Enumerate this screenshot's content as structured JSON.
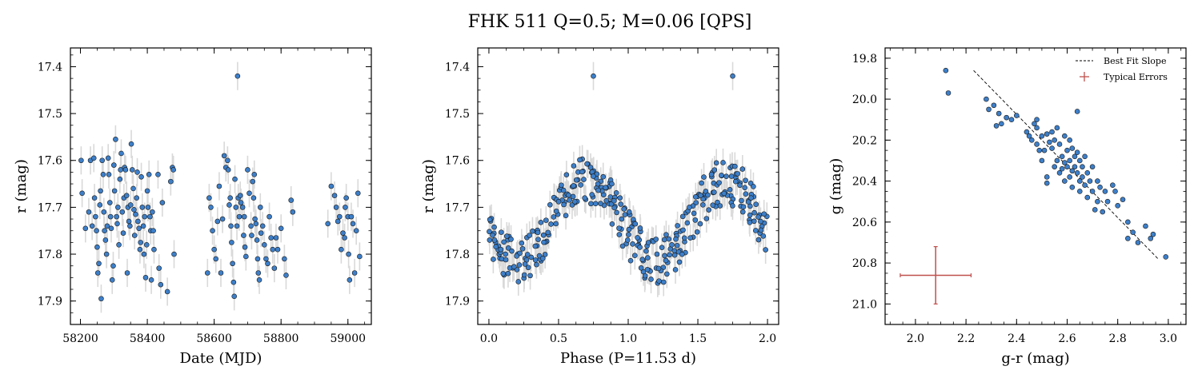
{
  "title": "FHK 511  Q=0.5; M=0.06 [QPS]",
  "colors": {
    "point": "#3d7fc9",
    "point_edge": "#1a1a1a",
    "errorbar": "#d9d9d9",
    "fit_line": "#000000",
    "typical_error": "#c0504d"
  },
  "legend": {
    "fit_label": "Best Fit Slope",
    "err_label": "Typical Errors",
    "placement": "top-right"
  },
  "chart_data": [
    {
      "type": "scatter",
      "xlabel": "Date (MJD)",
      "ylabel": "r (mag)",
      "xlim": [
        58170,
        59070
      ],
      "ylim": [
        17.95,
        17.36
      ],
      "y_inverted": true,
      "xticks": [
        58200,
        58400,
        58600,
        58800,
        59000
      ],
      "yticks": [
        17.4,
        17.5,
        17.6,
        17.7,
        17.8,
        17.9
      ],
      "error_bar_mag": 0.03,
      "points": [
        [
          58202,
          17.6
        ],
        [
          58205,
          17.67
        ],
        [
          58215,
          17.745
        ],
        [
          58225,
          17.71
        ],
        [
          58230,
          17.6
        ],
        [
          58235,
          17.74
        ],
        [
          58240,
          17.595
        ],
        [
          58242,
          17.68
        ],
        [
          58245,
          17.72
        ],
        [
          58248,
          17.75
        ],
        [
          58250,
          17.785
        ],
        [
          58252,
          17.84
        ],
        [
          58255,
          17.82
        ],
        [
          58258,
          17.695
        ],
        [
          58260,
          17.665
        ],
        [
          58262,
          17.895
        ],
        [
          58265,
          17.6
        ],
        [
          58268,
          17.63
        ],
        [
          58270,
          17.71
        ],
        [
          58272,
          17.75
        ],
        [
          58275,
          17.77
        ],
        [
          58278,
          17.8
        ],
        [
          58280,
          17.74
        ],
        [
          58283,
          17.595
        ],
        [
          58285,
          17.63
        ],
        [
          58288,
          17.69
        ],
        [
          58290,
          17.72
        ],
        [
          58292,
          17.745
        ],
        [
          58295,
          17.855
        ],
        [
          58298,
          17.825
        ],
        [
          58300,
          17.61
        ],
        [
          58302,
          17.665
        ],
        [
          58305,
          17.555
        ],
        [
          58308,
          17.72
        ],
        [
          58310,
          17.735
        ],
        [
          58312,
          17.7
        ],
        [
          58315,
          17.78
        ],
        [
          58318,
          17.64
        ],
        [
          58320,
          17.62
        ],
        [
          58322,
          17.585
        ],
        [
          58325,
          17.71
        ],
        [
          58328,
          17.755
        ],
        [
          58330,
          17.68
        ],
        [
          58332,
          17.615
        ],
        [
          58335,
          17.62
        ],
        [
          58338,
          17.675
        ],
        [
          58340,
          17.84
        ],
        [
          58342,
          17.7
        ],
        [
          58345,
          17.73
        ],
        [
          58348,
          17.74
        ],
        [
          58350,
          17.695
        ],
        [
          58352,
          17.565
        ],
        [
          58355,
          17.62
        ],
        [
          58358,
          17.66
        ],
        [
          58360,
          17.705
        ],
        [
          58362,
          17.76
        ],
        [
          58365,
          17.715
        ],
        [
          58368,
          17.68
        ],
        [
          58370,
          17.625
        ],
        [
          58372,
          17.73
        ],
        [
          58375,
          17.745
        ],
        [
          58378,
          17.79
        ],
        [
          58380,
          17.775
        ],
        [
          58382,
          17.635
        ],
        [
          58385,
          17.7
        ],
        [
          58388,
          17.74
        ],
        [
          58390,
          17.8
        ],
        [
          58392,
          17.72
        ],
        [
          58395,
          17.85
        ],
        [
          58398,
          17.78
        ],
        [
          58400,
          17.665
        ],
        [
          58402,
          17.7
        ],
        [
          58405,
          17.63
        ],
        [
          58408,
          17.72
        ],
        [
          58410,
          17.75
        ],
        [
          58412,
          17.855
        ],
        [
          58415,
          17.71
        ],
        [
          58418,
          17.75
        ],
        [
          58420,
          17.79
        ],
        [
          58432,
          17.63
        ],
        [
          58435,
          17.83
        ],
        [
          58440,
          17.865
        ],
        [
          58445,
          17.69
        ],
        [
          58460,
          17.88
        ],
        [
          58470,
          17.645
        ],
        [
          58475,
          17.615
        ],
        [
          58478,
          17.62
        ],
        [
          58480,
          17.8
        ],
        [
          58580,
          17.84
        ],
        [
          58585,
          17.68
        ],
        [
          58590,
          17.7
        ],
        [
          58595,
          17.75
        ],
        [
          58600,
          17.79
        ],
        [
          58605,
          17.81
        ],
        [
          58610,
          17.73
        ],
        [
          58615,
          17.655
        ],
        [
          58620,
          17.84
        ],
        [
          58625,
          17.725
        ],
        [
          58630,
          17.59
        ],
        [
          58635,
          17.615
        ],
        [
          58640,
          17.6
        ],
        [
          58642,
          17.62
        ],
        [
          58645,
          17.695
        ],
        [
          58648,
          17.68
        ],
        [
          58650,
          17.74
        ],
        [
          58652,
          17.775
        ],
        [
          58655,
          17.82
        ],
        [
          58658,
          17.86
        ],
        [
          58660,
          17.89
        ],
        [
          58662,
          17.64
        ],
        [
          58665,
          17.7
        ],
        [
          58668,
          17.74
        ],
        [
          58670,
          17.42
        ],
        [
          58672,
          17.68
        ],
        [
          58675,
          17.72
        ],
        [
          58678,
          17.675
        ],
        [
          58680,
          17.69
        ],
        [
          58685,
          17.7
        ],
        [
          58688,
          17.76
        ],
        [
          58690,
          17.72
        ],
        [
          58692,
          17.785
        ],
        [
          58695,
          17.805
        ],
        [
          58700,
          17.62
        ],
        [
          58705,
          17.67
        ],
        [
          58710,
          17.74
        ],
        [
          58712,
          17.76
        ],
        [
          58715,
          17.645
        ],
        [
          58718,
          17.68
        ],
        [
          58720,
          17.63
        ],
        [
          58722,
          17.725
        ],
        [
          58725,
          17.735
        ],
        [
          58728,
          17.77
        ],
        [
          58730,
          17.81
        ],
        [
          58732,
          17.84
        ],
        [
          58735,
          17.855
        ],
        [
          58738,
          17.7
        ],
        [
          58740,
          17.755
        ],
        [
          58745,
          17.74
        ],
        [
          58750,
          17.78
        ],
        [
          58755,
          17.81
        ],
        [
          58760,
          17.82
        ],
        [
          58765,
          17.72
        ],
        [
          58770,
          17.765
        ],
        [
          58775,
          17.79
        ],
        [
          58780,
          17.83
        ],
        [
          58785,
          17.765
        ],
        [
          58790,
          17.79
        ],
        [
          58800,
          17.745
        ],
        [
          58810,
          17.81
        ],
        [
          58815,
          17.845
        ],
        [
          58830,
          17.685
        ],
        [
          58835,
          17.71
        ],
        [
          58940,
          17.735
        ],
        [
          58950,
          17.655
        ],
        [
          58960,
          17.675
        ],
        [
          58965,
          17.7
        ],
        [
          58970,
          17.73
        ],
        [
          58975,
          17.72
        ],
        [
          58980,
          17.79
        ],
        [
          58985,
          17.755
        ],
        [
          58990,
          17.765
        ],
        [
          58992,
          17.7
        ],
        [
          58995,
          17.68
        ],
        [
          59000,
          17.72
        ],
        [
          59002,
          17.8
        ],
        [
          59005,
          17.855
        ],
        [
          59010,
          17.72
        ],
        [
          59015,
          17.735
        ],
        [
          59020,
          17.84
        ],
        [
          59025,
          17.75
        ],
        [
          59030,
          17.67
        ],
        [
          59035,
          17.805
        ]
      ]
    },
    {
      "type": "scatter",
      "xlabel": "Phase (P=11.53 d)",
      "ylabel": "r (mag)",
      "xlim": [
        -0.08,
        2.08
      ],
      "ylim": [
        17.95,
        17.36
      ],
      "y_inverted": true,
      "xticks": [
        0.0,
        0.5,
        1.0,
        1.5,
        2.0
      ],
      "yticks": [
        17.4,
        17.5,
        17.6,
        17.7,
        17.8,
        17.9
      ],
      "period_days": 11.53,
      "phase_model": {
        "mean": 17.73,
        "amplitude": 0.085,
        "peak_phase": 0.7
      },
      "error_bar_mag": 0.03,
      "highlight_points": [
        [
          0.75,
          17.42
        ],
        [
          1.75,
          17.42
        ]
      ]
    },
    {
      "type": "scatter",
      "xlabel": "g-r (mag)",
      "ylabel": "g (mag)",
      "xlim": [
        1.88,
        3.07
      ],
      "ylim": [
        21.1,
        19.75
      ],
      "y_inverted": true,
      "xticks": [
        2.0,
        2.2,
        2.4,
        2.6,
        2.8,
        3.0
      ],
      "yticks": [
        19.8,
        20.0,
        20.2,
        20.4,
        20.6,
        20.8,
        21.0
      ],
      "best_fit_line": [
        [
          2.23,
          19.86
        ],
        [
          2.96,
          20.78
        ]
      ],
      "typical_error": {
        "center": [
          2.08,
          20.86
        ],
        "xerr": 0.14,
        "yerr": 0.14
      },
      "points": [
        [
          2.12,
          19.86
        ],
        [
          2.13,
          19.97
        ],
        [
          2.28,
          20.0
        ],
        [
          2.29,
          20.05
        ],
        [
          2.31,
          20.03
        ],
        [
          2.32,
          20.13
        ],
        [
          2.33,
          20.07
        ],
        [
          2.34,
          20.12
        ],
        [
          2.36,
          20.09
        ],
        [
          2.38,
          20.1
        ],
        [
          2.4,
          20.08
        ],
        [
          2.44,
          20.16
        ],
        [
          2.45,
          20.18
        ],
        [
          2.46,
          20.2
        ],
        [
          2.47,
          20.12
        ],
        [
          2.48,
          20.1
        ],
        [
          2.48,
          20.14
        ],
        [
          2.48,
          20.22
        ],
        [
          2.49,
          20.25
        ],
        [
          2.5,
          20.18
        ],
        [
          2.5,
          20.3
        ],
        [
          2.51,
          20.25
        ],
        [
          2.52,
          20.17
        ],
        [
          2.52,
          20.38
        ],
        [
          2.52,
          20.41
        ],
        [
          2.53,
          20.21
        ],
        [
          2.54,
          20.16
        ],
        [
          2.54,
          20.24
        ],
        [
          2.55,
          20.33
        ],
        [
          2.55,
          20.2
        ],
        [
          2.56,
          20.3
        ],
        [
          2.56,
          20.14
        ],
        [
          2.57,
          20.22
        ],
        [
          2.57,
          20.36
        ],
        [
          2.58,
          20.28
        ],
        [
          2.58,
          20.34
        ],
        [
          2.59,
          20.18
        ],
        [
          2.59,
          20.31
        ],
        [
          2.59,
          20.4
        ],
        [
          2.6,
          20.25
        ],
        [
          2.6,
          20.33
        ],
        [
          2.61,
          20.2
        ],
        [
          2.61,
          20.3
        ],
        [
          2.61,
          20.38
        ],
        [
          2.62,
          20.24
        ],
        [
          2.62,
          20.35
        ],
        [
          2.62,
          20.43
        ],
        [
          2.63,
          20.28
        ],
        [
          2.63,
          20.33
        ],
        [
          2.64,
          20.26
        ],
        [
          2.64,
          20.36
        ],
        [
          2.64,
          20.06
        ],
        [
          2.65,
          20.3
        ],
        [
          2.65,
          20.4
        ],
        [
          2.65,
          20.45
        ],
        [
          2.66,
          20.33
        ],
        [
          2.66,
          20.38
        ],
        [
          2.67,
          20.28
        ],
        [
          2.67,
          20.42
        ],
        [
          2.68,
          20.36
        ],
        [
          2.68,
          20.48
        ],
        [
          2.69,
          20.4
        ],
        [
          2.7,
          20.33
        ],
        [
          2.7,
          20.45
        ],
        [
          2.71,
          20.54
        ],
        [
          2.72,
          20.4
        ],
        [
          2.72,
          20.5
        ],
        [
          2.73,
          20.43
        ],
        [
          2.74,
          20.55
        ],
        [
          2.75,
          20.45
        ],
        [
          2.76,
          20.5
        ],
        [
          2.78,
          20.42
        ],
        [
          2.79,
          20.45
        ],
        [
          2.8,
          20.52
        ],
        [
          2.82,
          20.49
        ],
        [
          2.84,
          20.6
        ],
        [
          2.84,
          20.68
        ],
        [
          2.86,
          20.65
        ],
        [
          2.88,
          20.7
        ],
        [
          2.91,
          20.62
        ],
        [
          2.93,
          20.68
        ],
        [
          2.94,
          20.66
        ],
        [
          2.99,
          20.77
        ]
      ]
    }
  ]
}
